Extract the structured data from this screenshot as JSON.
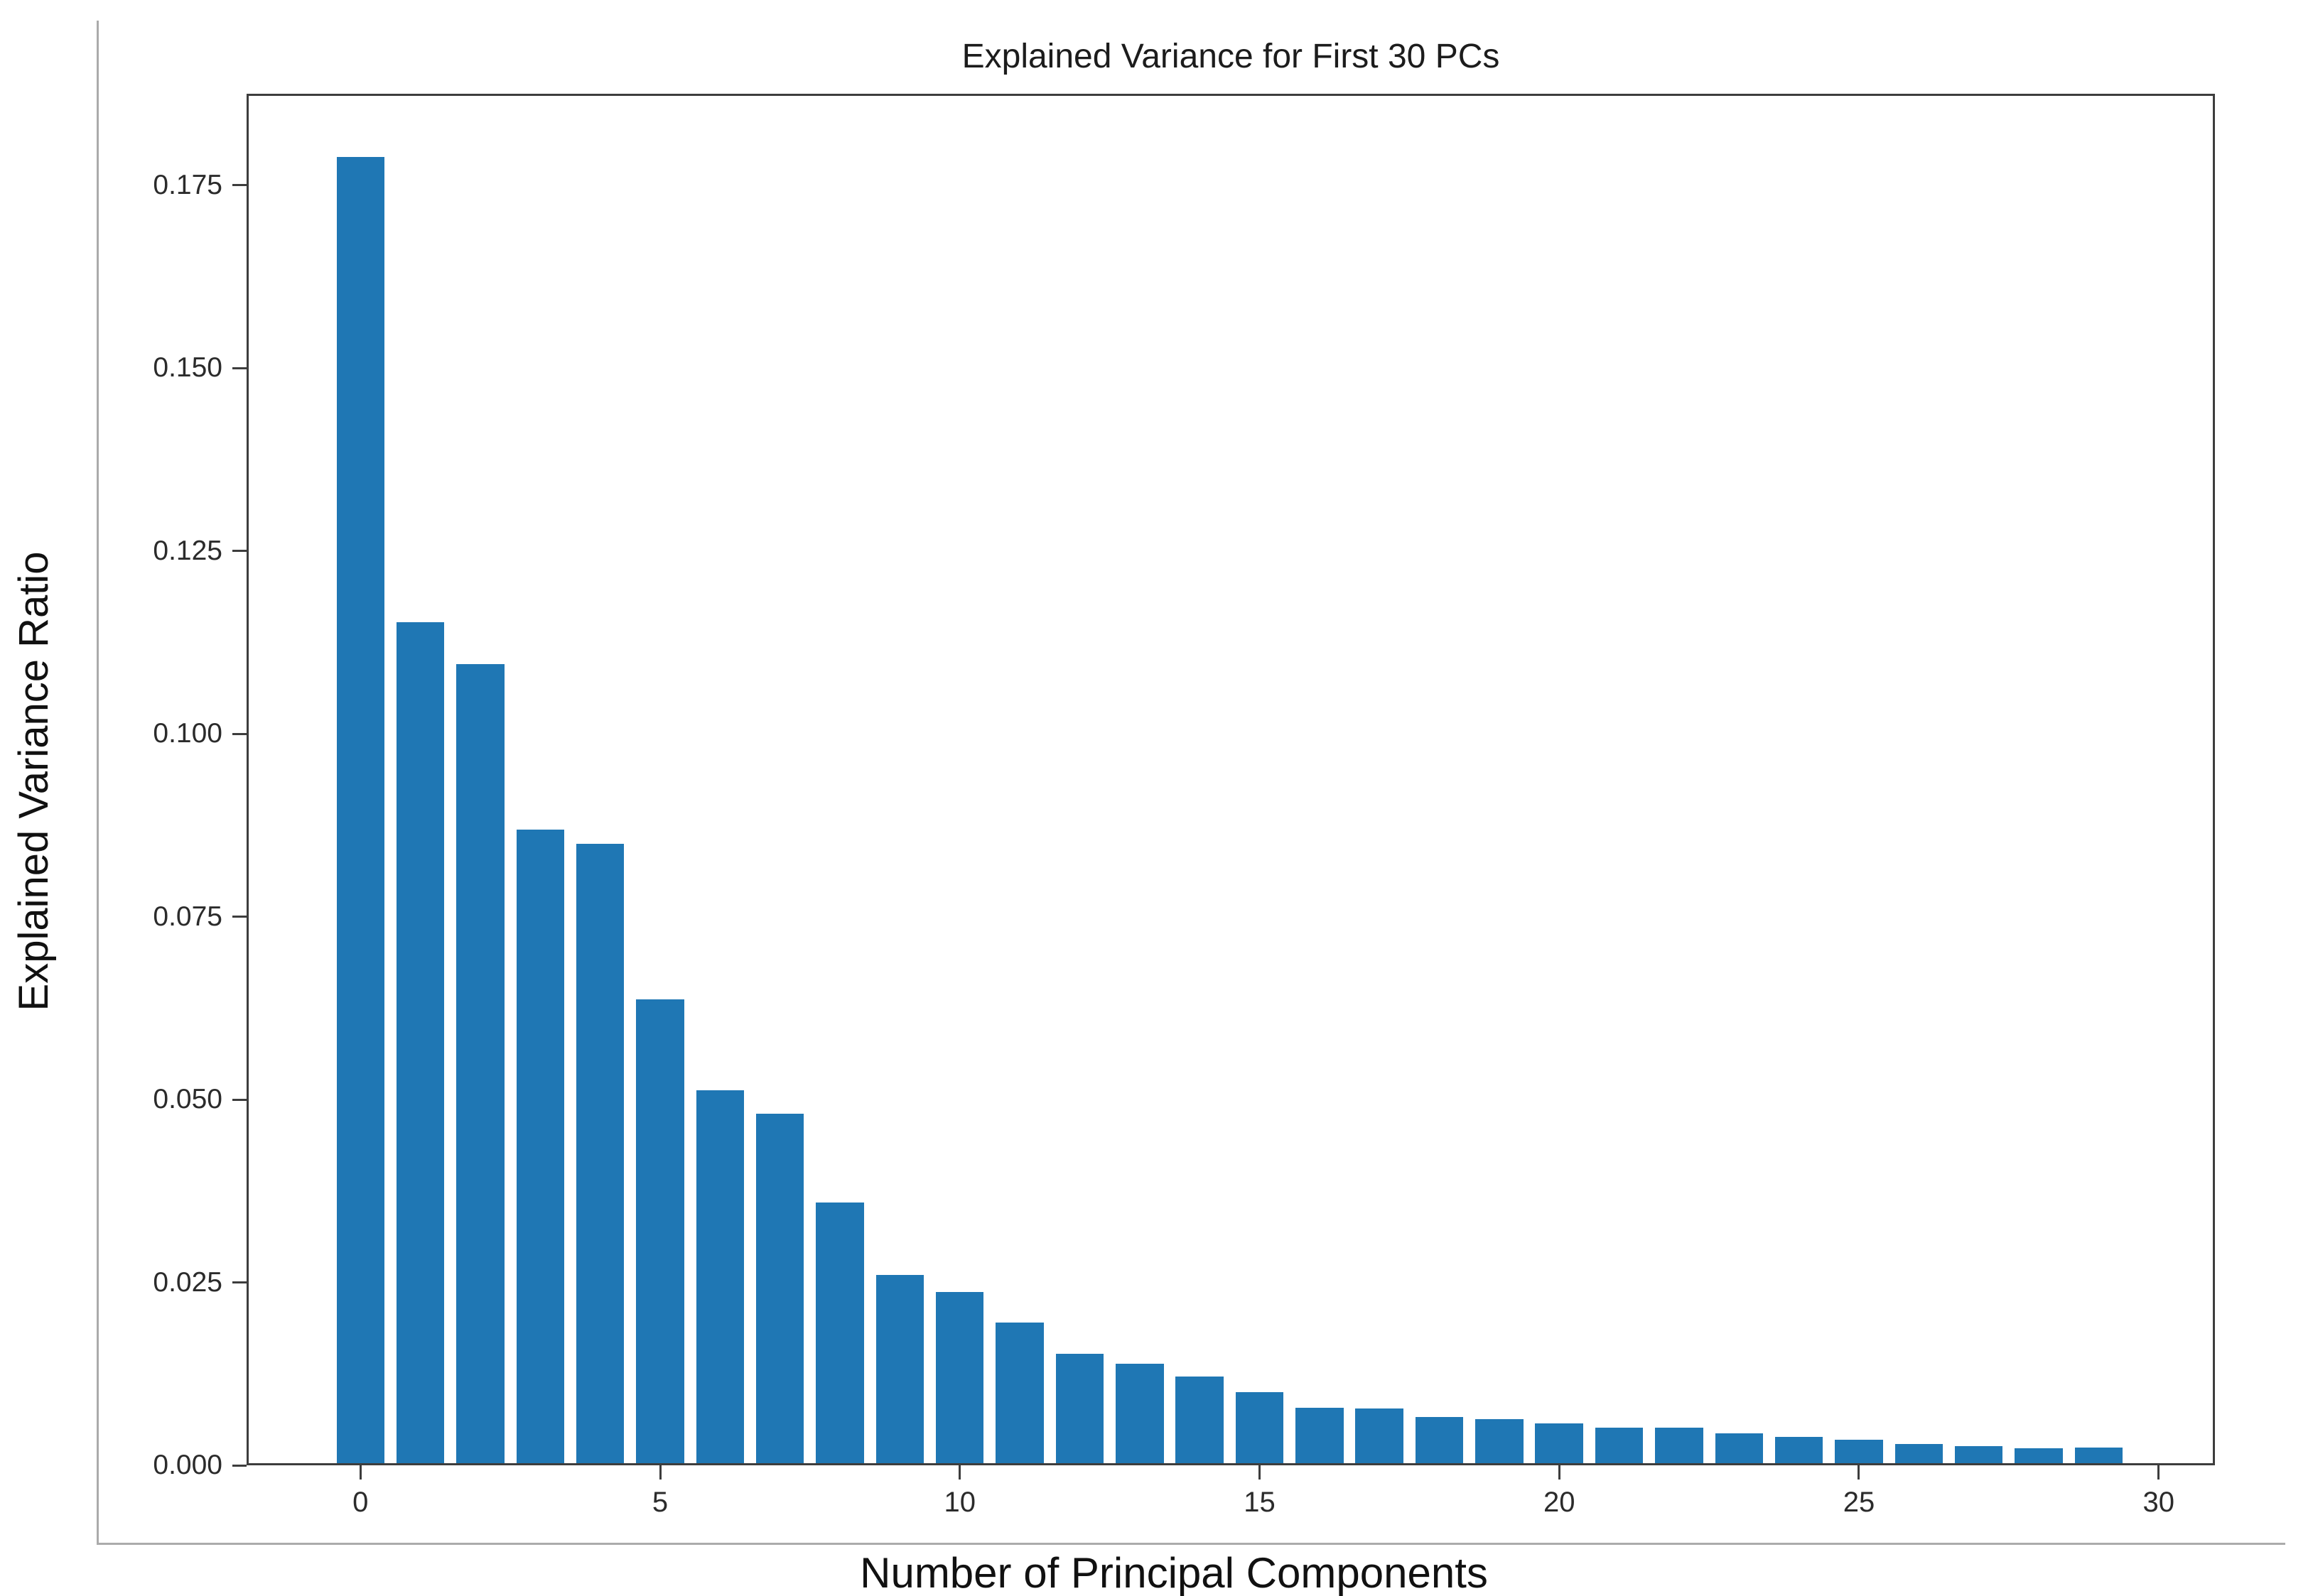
{
  "figure": {
    "background": "#ffffff",
    "container_border_color": "#ababab"
  },
  "chart_data": {
    "type": "bar",
    "title": "Explained Variance for First 30 PCs",
    "xlabel": "Number of Principal Components",
    "ylabel": "Explained Variance Ratio",
    "x": [
      0,
      1,
      2,
      3,
      4,
      5,
      6,
      7,
      8,
      9,
      10,
      11,
      12,
      13,
      14,
      15,
      16,
      17,
      18,
      19,
      20,
      21,
      22,
      23,
      24,
      25,
      26,
      27,
      28,
      29
    ],
    "values": [
      0.1789,
      0.1153,
      0.1095,
      0.0869,
      0.085,
      0.0637,
      0.0513,
      0.0481,
      0.0359,
      0.026,
      0.0237,
      0.0195,
      0.0152,
      0.0139,
      0.0121,
      0.01,
      0.0079,
      0.0078,
      0.0066,
      0.0063,
      0.0057,
      0.0051,
      0.0051,
      0.0044,
      0.0039,
      0.0035,
      0.0029,
      0.0026,
      0.0023,
      0.0024
    ],
    "bar_color": "#1f77b4",
    "bar_width_units": 0.8,
    "x_ticks": [
      0,
      5,
      10,
      15,
      20,
      25,
      30
    ],
    "y_ticks": [
      0.0,
      0.025,
      0.05,
      0.075,
      0.1,
      0.125,
      0.15,
      0.175
    ],
    "y_tick_labels": [
      "0.000",
      "0.025",
      "0.050",
      "0.075",
      "0.100",
      "0.125",
      "0.150",
      "0.175"
    ],
    "xlim": [
      -1.9,
      30.94
    ],
    "ylim": [
      0,
      0.1875
    ],
    "grid": false,
    "legend": null,
    "spine_color": "#3d3d3d"
  }
}
